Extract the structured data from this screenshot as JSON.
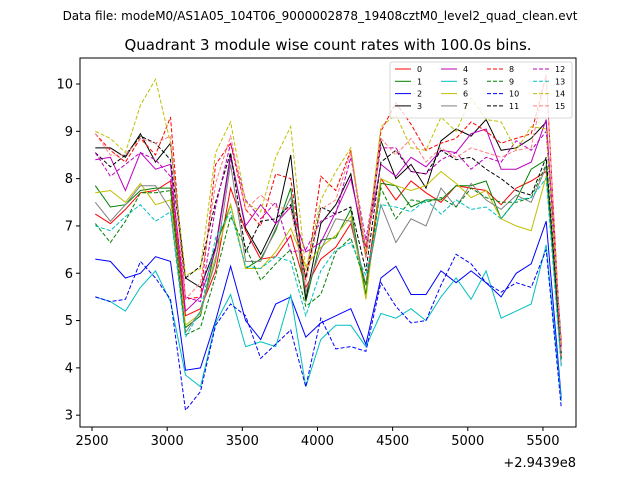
{
  "suptitle": "Data file: modeM0/AS1A05_104T06_9000002878_19408cztM0_level2_quad_clean.evt",
  "chart_data": {
    "type": "line",
    "title": "Quadrant 3 module wise count rates with 100.0s bins.",
    "xlabel": "",
    "ylabel": "",
    "x_offset_label": "+2.9439e8",
    "xlim": [
      2420,
      5720
    ],
    "ylim": [
      2.75,
      10.55
    ],
    "xticks": [
      2500,
      3000,
      3500,
      4000,
      4500,
      5000,
      5500
    ],
    "xtick_labels": [
      "2500",
      "3000",
      "3500",
      "4000",
      "4500",
      "5000",
      "5500"
    ],
    "yticks": [
      3,
      4,
      5,
      6,
      7,
      8,
      9,
      10
    ],
    "ytick_labels": [
      "3",
      "4",
      "5",
      "6",
      "7",
      "8",
      "9",
      "10"
    ],
    "grid": false,
    "legend_position": "top-right",
    "x": [
      2522,
      2622,
      2722,
      2822,
      2922,
      3022,
      3122,
      3222,
      3322,
      3422,
      3522,
      3622,
      3722,
      3822,
      3922,
      4022,
      4122,
      4222,
      4322,
      4422,
      4522,
      4622,
      4722,
      4822,
      4922,
      5022,
      5122,
      5222,
      5322,
      5422,
      5522,
      5622
    ],
    "series": [
      {
        "name": "0",
        "color": "#ff0000",
        "dash": "solid",
        "values": [
          7.25,
          7.05,
          7.35,
          7.7,
          7.75,
          7.95,
          5.1,
          5.25,
          6.05,
          7.8,
          6.9,
          6.3,
          6.35,
          6.8,
          5.7,
          6.3,
          6.55,
          7.05,
          5.75,
          8.0,
          7.55,
          7.95,
          7.7,
          7.5,
          7.85,
          7.8,
          7.75,
          7.45,
          7.8,
          7.95,
          8.15,
          4.25
        ]
      },
      {
        "name": "1",
        "color": "#008000",
        "dash": "solid",
        "values": [
          7.85,
          7.4,
          7.45,
          7.75,
          7.8,
          7.8,
          4.85,
          5.1,
          6.55,
          7.45,
          6.1,
          6.3,
          6.9,
          7.8,
          5.4,
          6.7,
          6.75,
          7.35,
          5.55,
          7.9,
          7.85,
          7.4,
          7.55,
          7.55,
          7.85,
          7.85,
          7.95,
          7.15,
          7.55,
          8.2,
          8.4,
          4.3
        ]
      },
      {
        "name": "2",
        "color": "#0000ff",
        "dash": "solid",
        "values": [
          6.3,
          6.25,
          5.9,
          6.0,
          6.35,
          6.25,
          3.95,
          4.0,
          5.0,
          6.15,
          5.0,
          4.6,
          5.35,
          5.5,
          4.65,
          4.95,
          5.1,
          5.25,
          4.5,
          5.9,
          6.15,
          5.55,
          5.55,
          6.05,
          5.8,
          6.05,
          5.8,
          5.5,
          6.0,
          6.2,
          7.1,
          3.35
        ]
      },
      {
        "name": "3",
        "color": "#000000",
        "dash": "solid",
        "values": [
          8.65,
          8.65,
          8.45,
          8.95,
          8.35,
          8.75,
          5.9,
          5.7,
          6.55,
          8.5,
          6.95,
          6.4,
          7.05,
          8.5,
          5.45,
          7.05,
          7.45,
          8.1,
          6.35,
          8.8,
          8.0,
          8.3,
          7.8,
          8.8,
          9.05,
          8.9,
          9.25,
          8.6,
          8.65,
          8.85,
          9.2,
          4.5
        ]
      },
      {
        "name": "4",
        "color": "#bf00bf",
        "dash": "solid",
        "values": [
          8.4,
          8.45,
          7.75,
          8.55,
          8.2,
          8.3,
          5.2,
          5.5,
          6.5,
          8.45,
          7.0,
          7.45,
          7.05,
          7.4,
          6.45,
          6.65,
          7.3,
          8.0,
          6.55,
          8.3,
          8.05,
          8.45,
          8.25,
          8.6,
          8.55,
          8.95,
          9.05,
          8.2,
          8.2,
          8.35,
          9.25,
          4.45
        ]
      },
      {
        "name": "5",
        "color": "#00bfbf",
        "dash": "solid",
        "values": [
          5.5,
          5.4,
          5.2,
          5.7,
          6.05,
          5.4,
          3.85,
          3.6,
          4.95,
          5.55,
          4.45,
          4.55,
          4.45,
          5.55,
          3.6,
          4.6,
          4.9,
          4.9,
          4.45,
          5.15,
          5.05,
          5.25,
          5.0,
          5.5,
          5.9,
          5.45,
          6.05,
          5.05,
          5.2,
          5.35,
          6.6,
          3.3
        ]
      },
      {
        "name": "6",
        "color": "#bfbf00",
        "dash": "solid",
        "values": [
          7.7,
          7.75,
          7.5,
          7.9,
          7.45,
          7.55,
          4.9,
          5.15,
          6.35,
          7.45,
          6.1,
          6.1,
          6.45,
          6.95,
          6.15,
          6.55,
          6.8,
          7.2,
          5.45,
          8.0,
          7.85,
          7.75,
          7.85,
          8.15,
          7.9,
          7.6,
          7.75,
          7.15,
          7.0,
          6.9,
          8.05,
          4.25
        ]
      },
      {
        "name": "7",
        "color": "#808080",
        "dash": "solid",
        "values": [
          7.5,
          7.1,
          7.45,
          7.85,
          7.85,
          7.35,
          4.75,
          5.2,
          6.25,
          8.3,
          6.25,
          6.25,
          6.95,
          7.6,
          5.6,
          6.5,
          7.15,
          7.1,
          5.75,
          7.45,
          6.65,
          7.15,
          7.0,
          7.8,
          7.4,
          7.9,
          7.55,
          7.35,
          7.65,
          7.5,
          8.25,
          4.05
        ]
      },
      {
        "name": "8",
        "color": "#ff0000",
        "dash": "dashed",
        "values": [
          8.95,
          8.6,
          8.35,
          8.85,
          8.5,
          9.3,
          5.45,
          5.5,
          8.3,
          8.75,
          7.35,
          7.0,
          8.1,
          8.0,
          5.85,
          8.05,
          7.75,
          8.6,
          6.4,
          9.0,
          9.6,
          9.15,
          8.6,
          8.75,
          8.85,
          9.2,
          9.0,
          8.75,
          8.85,
          8.95,
          10.2,
          4.2
        ]
      },
      {
        "name": "9",
        "color": "#008000",
        "dash": "dashed",
        "values": [
          7.05,
          6.65,
          7.1,
          7.7,
          7.7,
          7.75,
          4.7,
          4.85,
          5.95,
          7.2,
          6.55,
          5.85,
          6.2,
          6.5,
          5.3,
          5.55,
          6.45,
          6.75,
          5.75,
          7.8,
          7.15,
          7.55,
          7.5,
          7.6,
          7.4,
          7.8,
          7.6,
          7.5,
          7.5,
          7.6,
          8.3,
          4.15
        ]
      },
      {
        "name": "10",
        "color": "#0000ff",
        "dash": "dashed",
        "values": [
          5.5,
          5.4,
          5.45,
          6.25,
          5.9,
          5.45,
          3.1,
          3.5,
          4.9,
          5.35,
          5.1,
          4.2,
          4.5,
          4.8,
          3.6,
          5.05,
          4.4,
          4.45,
          4.35,
          5.8,
          5.3,
          4.95,
          5.0,
          5.75,
          6.4,
          6.2,
          5.8,
          5.6,
          5.8,
          5.7,
          6.5,
          3.15
        ]
      },
      {
        "name": "11",
        "color": "#000000",
        "dash": "dashed",
        "values": [
          8.55,
          8.25,
          8.5,
          8.9,
          8.75,
          8.4,
          5.9,
          6.15,
          7.5,
          8.55,
          6.45,
          7.1,
          7.15,
          7.45,
          5.9,
          7.4,
          7.25,
          7.4,
          6.05,
          8.35,
          8.6,
          8.15,
          8.1,
          8.6,
          8.4,
          8.45,
          8.2,
          8.0,
          7.75,
          7.65,
          8.45,
          4.3
        ]
      },
      {
        "name": "12",
        "color": "#bf00bf",
        "dash": "dashed",
        "values": [
          8.55,
          8.05,
          8.3,
          8.55,
          8.4,
          8.05,
          5.5,
          5.4,
          7.4,
          8.75,
          7.55,
          7.15,
          7.5,
          6.45,
          6.5,
          7.1,
          7.25,
          8.45,
          6.7,
          8.65,
          8.65,
          8.15,
          8.1,
          8.4,
          8.55,
          8.2,
          8.45,
          8.35,
          8.8,
          8.6,
          9.0,
          4.35
        ]
      },
      {
        "name": "13",
        "color": "#00bfbf",
        "dash": "dashed",
        "values": [
          7.0,
          6.9,
          7.2,
          7.45,
          7.1,
          7.3,
          4.65,
          5.2,
          6.75,
          7.3,
          6.15,
          6.1,
          6.35,
          6.25,
          5.1,
          6.05,
          6.5,
          6.65,
          5.95,
          7.45,
          7.4,
          7.3,
          7.55,
          7.25,
          7.55,
          7.35,
          7.4,
          7.15,
          7.55,
          7.6,
          8.0,
          4.0
        ]
      },
      {
        "name": "14",
        "color": "#bfbf00",
        "dash": "dashed",
        "values": [
          9.0,
          8.85,
          8.55,
          9.55,
          10.1,
          8.75,
          5.95,
          6.1,
          8.55,
          9.2,
          7.5,
          7.3,
          8.45,
          9.1,
          6.05,
          7.55,
          8.15,
          8.65,
          6.4,
          9.1,
          9.35,
          8.65,
          8.6,
          9.3,
          9.0,
          9.7,
          9.25,
          9.2,
          8.6,
          9.1,
          9.05,
          4.45
        ]
      },
      {
        "name": "15",
        "color": "#ff7f7f",
        "dash": "dashed",
        "values": [
          8.95,
          8.5,
          8.5,
          8.85,
          8.75,
          8.9,
          5.45,
          5.8,
          7.9,
          8.9,
          7.35,
          7.65,
          7.4,
          7.35,
          5.8,
          7.35,
          7.55,
          8.55,
          6.3,
          8.85,
          8.5,
          8.85,
          8.35,
          8.65,
          8.45,
          8.65,
          8.55,
          8.45,
          8.6,
          8.65,
          10.2,
          4.25
        ]
      }
    ]
  }
}
